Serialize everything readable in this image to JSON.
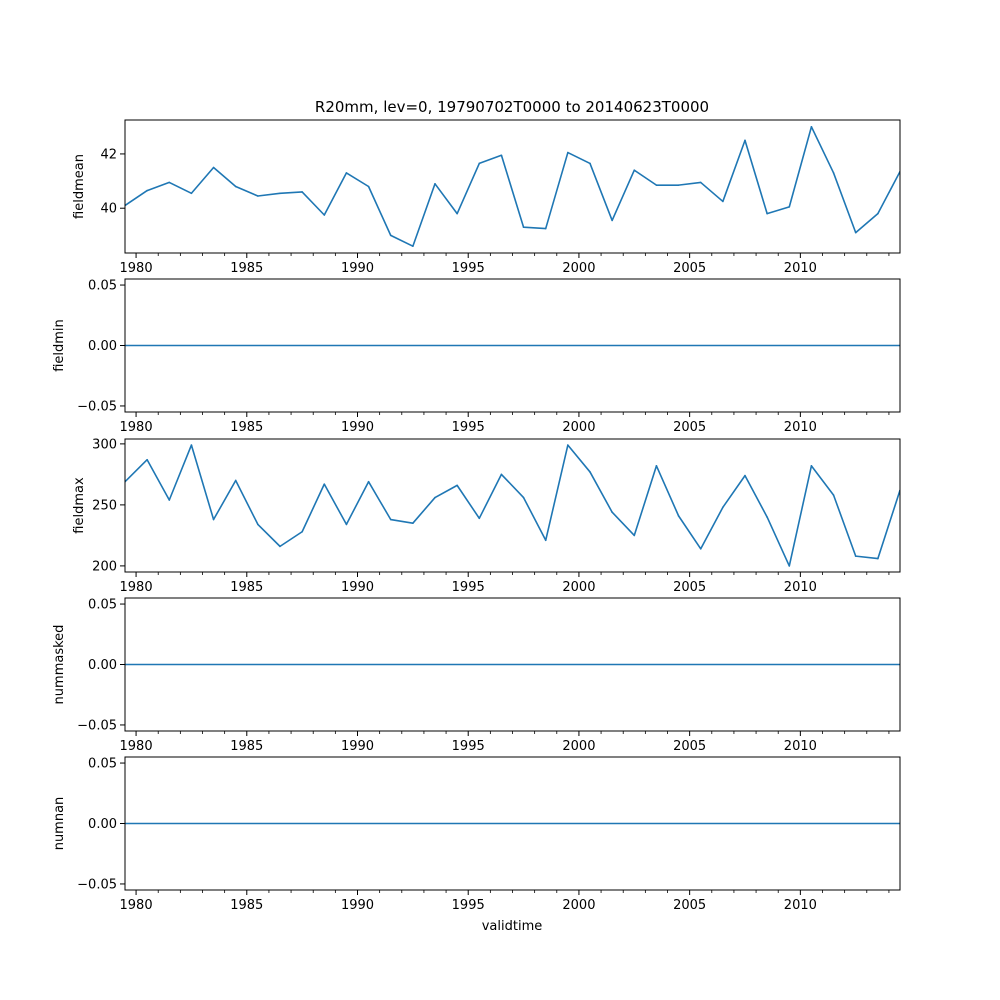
{
  "title": "R20mm, lev=0, 19790702T0000 to 20140623T0000",
  "xlabel": "validtime",
  "series_color": "#1f77b4",
  "x_ticks": [
    "1980",
    "1985",
    "1990",
    "1995",
    "2000",
    "2005",
    "2010"
  ],
  "chart_data": [
    {
      "type": "line",
      "ylabel": "fieldmean",
      "x": [
        1979.5,
        1980.5,
        1981.5,
        1982.5,
        1983.5,
        1984.5,
        1985.5,
        1986.5,
        1987.5,
        1988.5,
        1989.5,
        1990.5,
        1991.5,
        1992.5,
        1993.5,
        1994.5,
        1995.5,
        1996.5,
        1997.5,
        1998.5,
        1999.5,
        2000.5,
        2001.5,
        2002.5,
        2003.5,
        2004.5,
        2005.5,
        2006.5,
        2007.5,
        2008.5,
        2009.5,
        2010.5,
        2011.5,
        2012.5,
        2013.5,
        2014.5
      ],
      "values": [
        40.1,
        40.65,
        40.95,
        40.55,
        41.5,
        40.8,
        40.45,
        40.55,
        40.6,
        39.75,
        41.3,
        40.8,
        39.0,
        38.6,
        40.9,
        39.8,
        41.65,
        41.95,
        39.3,
        39.25,
        42.05,
        41.65,
        39.55,
        41.4,
        40.85,
        40.85,
        40.95,
        40.25,
        42.5,
        39.8,
        40.05,
        43.0,
        41.3,
        39.1,
        39.8,
        41.35
      ],
      "yticks": [
        "40",
        "42"
      ],
      "ylim": [
        38.35,
        43.25
      ],
      "xlim": [
        1979.5,
        2014.5
      ]
    },
    {
      "type": "line",
      "ylabel": "fieldmin",
      "x": [
        1979.5,
        2014.5
      ],
      "values": [
        0.0,
        0.0
      ],
      "yticks": [
        "−0.05",
        "0.00",
        "0.05"
      ],
      "ylim": [
        -0.055,
        0.055
      ],
      "xlim": [
        1979.5,
        2014.5
      ]
    },
    {
      "type": "line",
      "ylabel": "fieldmax",
      "x": [
        1979.5,
        1980.5,
        1981.5,
        1982.5,
        1983.5,
        1984.5,
        1985.5,
        1986.5,
        1987.5,
        1988.5,
        1989.5,
        1990.5,
        1991.5,
        1992.5,
        1993.5,
        1994.5,
        1995.5,
        1996.5,
        1997.5,
        1998.5,
        1999.5,
        2000.5,
        2001.5,
        2002.5,
        2003.5,
        2004.5,
        2005.5,
        2006.5,
        2007.5,
        2008.5,
        2009.5,
        2010.5,
        2011.5,
        2012.5,
        2013.5,
        2014.5
      ],
      "values": [
        269,
        287,
        254,
        299,
        238,
        270,
        234,
        216,
        228,
        267,
        234,
        269,
        238,
        235,
        256,
        266,
        239,
        275,
        256,
        221,
        299,
        277,
        244,
        225,
        282,
        241,
        214,
        248,
        274,
        240,
        200,
        282,
        258,
        208,
        206,
        262
      ],
      "yticks": [
        "200",
        "250",
        "300"
      ],
      "ylim": [
        195,
        304
      ],
      "xlim": [
        1979.5,
        2014.5
      ]
    },
    {
      "type": "line",
      "ylabel": "nummasked",
      "x": [
        1979.5,
        2014.5
      ],
      "values": [
        0.0,
        0.0
      ],
      "yticks": [
        "−0.05",
        "0.00",
        "0.05"
      ],
      "ylim": [
        -0.055,
        0.055
      ],
      "xlim": [
        1979.5,
        2014.5
      ]
    },
    {
      "type": "line",
      "ylabel": "numnan",
      "x": [
        1979.5,
        2014.5
      ],
      "values": [
        0.0,
        0.0
      ],
      "yticks": [
        "−0.05",
        "0.00",
        "0.05"
      ],
      "ylim": [
        -0.055,
        0.055
      ],
      "xlim": [
        1979.5,
        2014.5
      ]
    }
  ]
}
